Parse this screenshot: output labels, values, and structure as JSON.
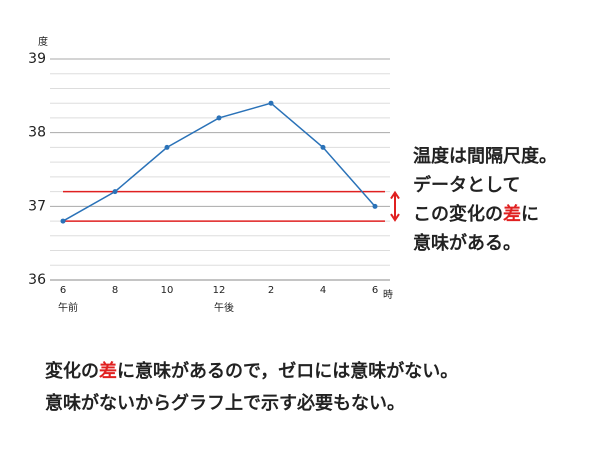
{
  "chart_data": {
    "type": "line",
    "y_label": "度",
    "x_unit": "時",
    "categories": [
      "6",
      "8",
      "10",
      "12",
      "2",
      "4",
      "6"
    ],
    "period_labels": [
      {
        "label": "午前",
        "at": 0
      },
      {
        "label": "午後",
        "at": 3
      }
    ],
    "series": [
      {
        "color": "#2a72b8",
        "values": [
          36.8,
          37.2,
          37.8,
          38.2,
          38.4,
          37.8,
          37.0
        ]
      }
    ],
    "ylim": [
      36,
      39
    ],
    "yticks": [
      36,
      37,
      38,
      39
    ],
    "yminorticks": [
      36.2,
      36.4,
      36.6,
      36.8,
      37.2,
      37.4,
      37.6,
      37.8,
      38.2,
      38.4,
      38.6,
      38.8
    ],
    "grid": true,
    "reference_lines": {
      "color": "#e02020",
      "values": [
        37.2,
        36.8
      ]
    }
  },
  "side_note": {
    "lines": [
      [
        {
          "text": "温度は間隔尺度。"
        }
      ],
      [
        {
          "text": "データとして"
        }
      ],
      [
        {
          "text": "この変化の"
        },
        {
          "text": "差",
          "emphasis": true
        },
        {
          "text": "に"
        }
      ],
      [
        {
          "text": "意味がある。"
        }
      ]
    ]
  },
  "bottom_note": {
    "lines": [
      [
        {
          "text": "変化の"
        },
        {
          "text": "差",
          "emphasis": true
        },
        {
          "text": "に意味があるので，ゼロには意味がない。"
        }
      ],
      [
        {
          "text": "意味がないからグラフ上で示す必要もない。"
        }
      ]
    ]
  },
  "emphasis_color": "#e02020"
}
